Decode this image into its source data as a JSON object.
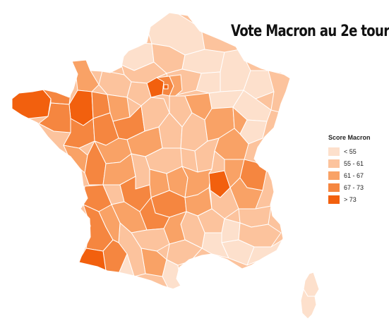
{
  "title": "Vote Macron au 2e tour",
  "legend": {
    "title": "Score Macron",
    "classes": [
      {
        "label": "< 55",
        "color": "#fde0cc"
      },
      {
        "label": "55 - 61",
        "color": "#fcc39d"
      },
      {
        "label": "61 - 67",
        "color": "#f9a266"
      },
      {
        "label": "67 - 73",
        "color": "#f58640"
      },
      {
        "label": "> 73",
        "color": "#f2600e"
      }
    ]
  }
}
